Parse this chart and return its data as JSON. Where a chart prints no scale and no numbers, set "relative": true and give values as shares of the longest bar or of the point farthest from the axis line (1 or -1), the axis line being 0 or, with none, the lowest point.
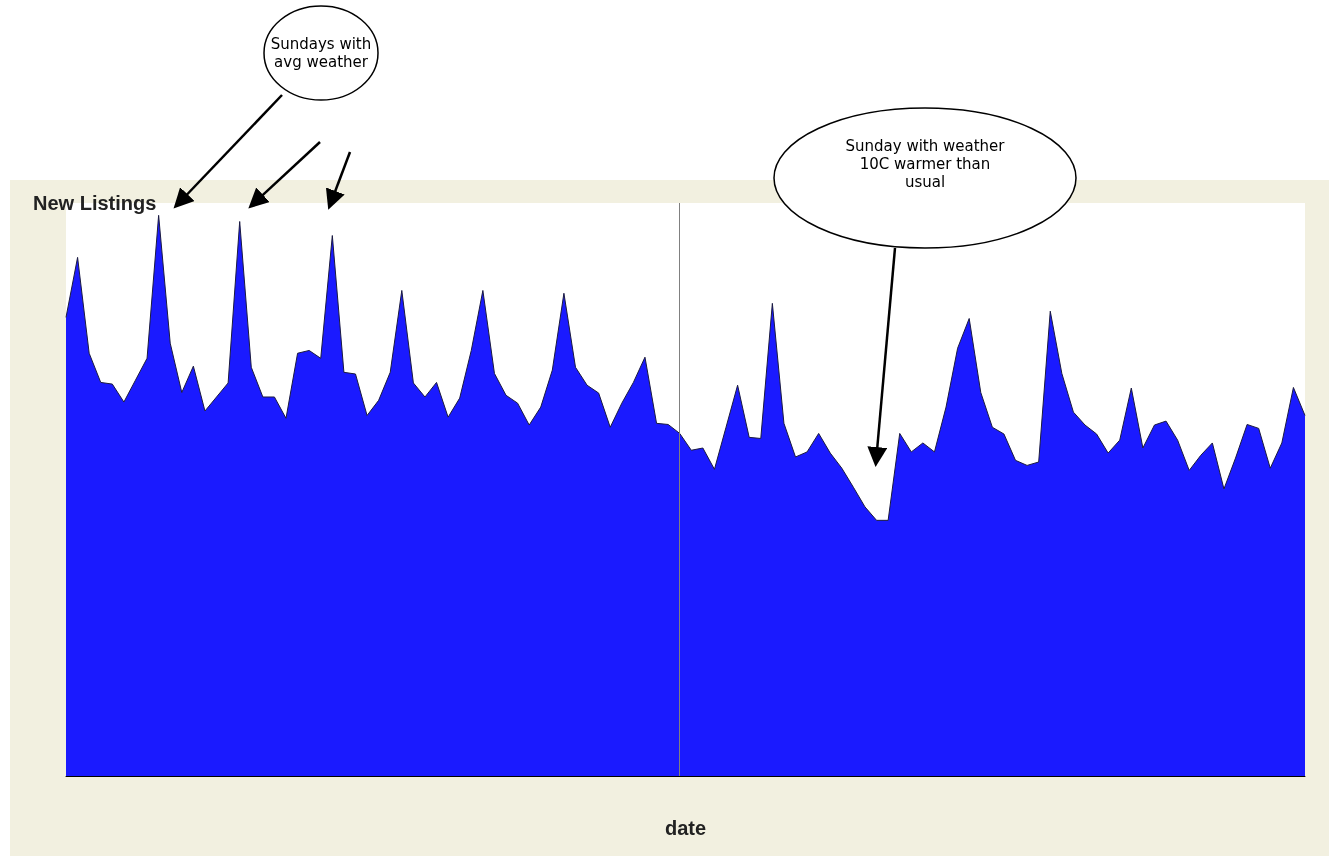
{
  "chart_data": {
    "type": "area",
    "title": "New Listings",
    "xlabel": "date",
    "relative": true,
    "grid": false,
    "marker": "none",
    "categories": [
      null,
      null,
      null,
      null,
      null,
      null,
      null,
      null,
      null,
      null,
      null,
      null,
      null,
      null,
      null,
      null,
      null,
      null,
      null,
      null,
      null,
      null,
      null,
      null,
      null,
      null,
      null,
      null,
      null,
      null,
      null,
      null,
      null,
      null,
      null,
      null,
      null,
      null,
      null,
      null,
      null,
      null,
      null,
      null,
      null,
      null,
      null,
      null,
      null,
      null,
      null,
      null,
      null,
      null,
      null,
      null,
      null,
      null,
      null,
      null,
      null,
      null,
      null,
      null,
      null,
      null,
      null,
      null,
      null,
      null,
      null,
      null,
      null,
      null,
      null,
      null,
      null,
      null,
      null,
      null,
      null,
      null,
      null,
      null,
      null,
      null,
      null,
      null,
      null,
      null,
      null,
      null,
      null,
      null,
      null,
      null,
      null,
      null,
      null,
      null,
      null,
      null,
      null,
      null,
      null,
      null,
      null,
      null
    ],
    "series": [
      {
        "color": "#1a1aff",
        "values": [
          0.818,
          0.925,
          0.754,
          0.702,
          0.699,
          0.667,
          0.706,
          0.745,
          1,
          0.772,
          0.684,
          0.731,
          0.651,
          0.676,
          0.701,
          0.989,
          0.729,
          0.676,
          0.676,
          0.638,
          0.754,
          0.759,
          0.745,
          0.964,
          0.72,
          0.717,
          0.643,
          0.67,
          0.72,
          0.866,
          0.701,
          0.676,
          0.702,
          0.64,
          0.674,
          0.759,
          0.866,
          0.718,
          0.679,
          0.665,
          0.626,
          0.658,
          0.724,
          0.861,
          0.729,
          0.697,
          0.683,
          0.622,
          0.665,
          0.702,
          0.747,
          0.629,
          0.627,
          0.611,
          0.581,
          0.585,
          0.547,
          0.622,
          0.697,
          0.604,
          0.602,
          0.843,
          0.629,
          0.569,
          0.578,
          0.611,
          0.576,
          0.549,
          0.515,
          0.48,
          0.456,
          0.456,
          0.611,
          0.578,
          0.594,
          0.578,
          0.658,
          0.763,
          0.816,
          0.684,
          0.622,
          0.61,
          0.563,
          0.554,
          0.56,
          0.829,
          0.718,
          0.649,
          0.626,
          0.61,
          0.576,
          0.599,
          0.692,
          0.585,
          0.626,
          0.633,
          0.599,
          0.545,
          0.572,
          0.594,
          0.512,
          0.567,
          0.627,
          0.62,
          0.549,
          0.594,
          0.693,
          0.643
        ]
      }
    ],
    "annotations": [
      "Sundays with avg weather",
      "Sunday with weather 10C warmer than usual"
    ]
  }
}
